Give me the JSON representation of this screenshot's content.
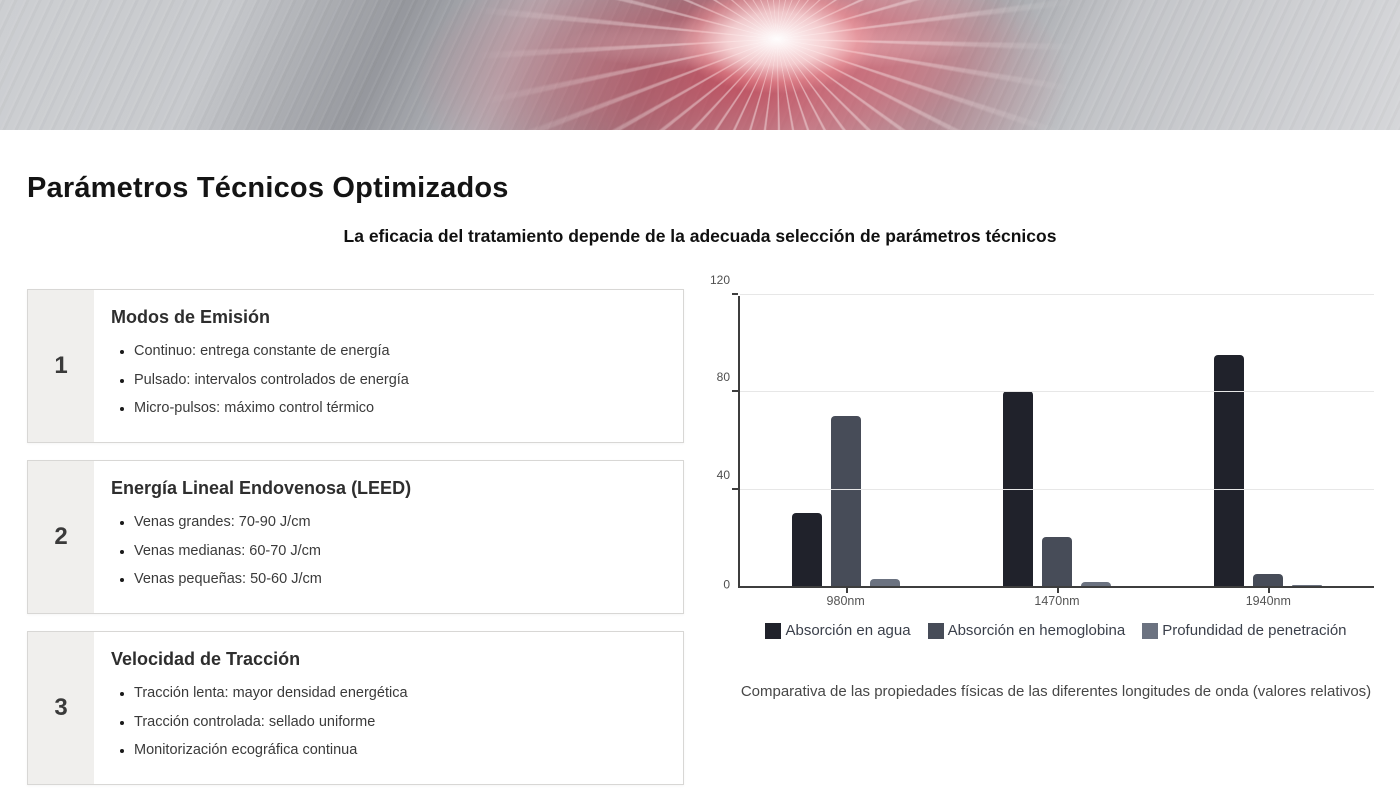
{
  "page": {
    "title": "Parámetros Técnicos Optimizados",
    "subtitle": "La eficacia del tratamiento depende de la adecuada selección de parámetros técnicos"
  },
  "hero": {
    "image_label": "laser-fiber-inside-vein-3d-render"
  },
  "cards": [
    {
      "number": "1",
      "title": "Modos de Emisión",
      "bullets": [
        "Continuo: entrega constante de energía",
        "Pulsado: intervalos controlados de energía",
        "Micro-pulsos: máximo control térmico"
      ]
    },
    {
      "number": "2",
      "title": "Energía Lineal Endovenosa (LEED)",
      "bullets": [
        "Venas grandes: 70-90 J/cm",
        "Venas medianas: 60-70 J/cm",
        "Venas pequeñas: 50-60 J/cm"
      ]
    },
    {
      "number": "3",
      "title": "Velocidad de Tracción",
      "bullets": [
        "Tracción lenta: mayor densidad energética",
        "Tracción controlada: sellado uniforme",
        "Monitorización ecográfica continua"
      ]
    }
  ],
  "chart_data": {
    "type": "bar",
    "categories": [
      "980nm",
      "1470nm",
      "1940nm"
    ],
    "series": [
      {
        "name": "Absorción en agua",
        "color": "#20222b",
        "values": [
          30,
          80,
          95
        ]
      },
      {
        "name": "Absorción en hemoglobina",
        "color": "#474c58",
        "values": [
          70,
          20,
          5
        ]
      },
      {
        "name": "Profundidad de penetración",
        "color": "#6b7280",
        "values": [
          3,
          1.5,
          0.5
        ]
      }
    ],
    "ylim": [
      0,
      120
    ],
    "yticks": [
      0,
      40,
      80,
      120
    ],
    "grid": true,
    "legend_position": "bottom",
    "caption": "Comparativa de las propiedades físicas de las diferentes longitudes de onda (valores relativos)"
  },
  "colors": {
    "axis": "#3d3d3d",
    "gridline": "#e7e7e7",
    "card_number_bg": "#f0efed",
    "card_border": "#d8d7d5",
    "hero_red_glow": "#c44052"
  }
}
